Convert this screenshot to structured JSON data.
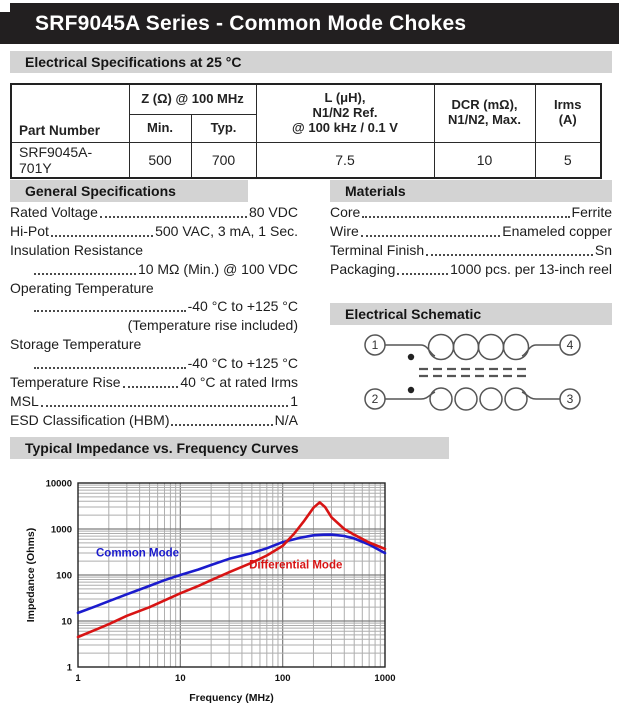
{
  "page": {
    "title": "SRF9045A Series - Common Mode Chokes"
  },
  "sections": {
    "electrical": "Electrical Specifications at 25 °C",
    "general": "General Specifications",
    "materials": "Materials",
    "schematic": "Electrical Schematic",
    "impedance": "Typical Impedance vs. Frequency Curves"
  },
  "table": {
    "col_part": "Part Number",
    "col_z": "Z (Ω) @ 100 MHz",
    "col_min": "Min.",
    "col_typ": "Typ.",
    "col_l": "L (μH),\nN1/N2 Ref.\n@ 100 kHz / 0.1 V",
    "col_dcr": "DCR (mΩ),\nN1/N2, Max.",
    "col_irms": "Irms\n(A)",
    "rows": [
      [
        "SRF9045A-701Y",
        "500",
        "700",
        "7.5",
        "10",
        "5"
      ]
    ]
  },
  "general_specs": [
    {
      "label": "Rated Voltage",
      "value": "80 VDC"
    },
    {
      "label": "Hi-Pot",
      "value": "500 VAC, 3 mA, 1 Sec."
    },
    {
      "label": "Insulation Resistance",
      "value": ""
    },
    {
      "label": "",
      "value": "10 MΩ (Min.) @ 100 VDC",
      "indent": true
    },
    {
      "label": "Operating Temperature",
      "value": ""
    },
    {
      "label": "",
      "value": "-40 °C to +125 °C",
      "indent": true
    },
    {
      "label": "",
      "value": "(Temperature rise included)",
      "noleader": true
    },
    {
      "label": "Storage Temperature",
      "value": ""
    },
    {
      "label": "",
      "value": "-40 °C to +125 °C",
      "indent": true
    },
    {
      "label": "Temperature Rise",
      "value": "40 °C at rated Irms"
    },
    {
      "label": "MSL",
      "value": "1"
    },
    {
      "label": "ESD Classification (HBM)",
      "value": "N/A"
    }
  ],
  "materials_specs": [
    {
      "label": "Core",
      "value": "Ferrite"
    },
    {
      "label": "Wire",
      "value": "Enameled copper"
    },
    {
      "label": "Terminal Finish",
      "value": "Sn"
    },
    {
      "label": "Packaging",
      "value": "1000 pcs. per 13-inch reel"
    }
  ],
  "schematic": {
    "t1": "1",
    "t2": "2",
    "t3": "3",
    "t4": "4"
  },
  "chart_data": {
    "type": "line",
    "title": "Typical Impedance vs. Frequency Curves",
    "xlabel": "Frequency (MHz)",
    "ylabel": "Impedance (Ohms)",
    "x_scale": "log",
    "y_scale": "log",
    "xlim": [
      1,
      1000
    ],
    "ylim": [
      1,
      10000
    ],
    "x_ticks": [
      1,
      10,
      100,
      1000
    ],
    "y_ticks": [
      1,
      10,
      100,
      1000,
      10000
    ],
    "grid": true,
    "colors": {
      "grid_minor": "#aeaeae",
      "grid_major": "#7d7d7d",
      "frame": "#222222"
    },
    "series": [
      {
        "name": "Common Mode",
        "color": "#1b1bcd",
        "label_at": [
          1.5,
          255
        ],
        "points": [
          [
            1,
            15
          ],
          [
            1.5,
            21
          ],
          [
            2,
            27
          ],
          [
            3,
            38
          ],
          [
            5,
            58
          ],
          [
            7,
            77
          ],
          [
            10,
            100
          ],
          [
            15,
            132
          ],
          [
            20,
            165
          ],
          [
            30,
            225
          ],
          [
            50,
            300
          ],
          [
            70,
            380
          ],
          [
            100,
            520
          ],
          [
            150,
            650
          ],
          [
            200,
            730
          ],
          [
            250,
            750
          ],
          [
            300,
            755
          ],
          [
            400,
            705
          ],
          [
            500,
            620
          ],
          [
            700,
            460
          ],
          [
            1000,
            300
          ]
        ]
      },
      {
        "name": "Differential Mode",
        "color": "#d81414",
        "label_at": [
          47,
          138
        ],
        "points": [
          [
            1,
            4.5
          ],
          [
            1.5,
            6.5
          ],
          [
            2,
            8.5
          ],
          [
            3,
            13
          ],
          [
            5,
            20
          ],
          [
            7,
            28
          ],
          [
            10,
            40
          ],
          [
            15,
            58
          ],
          [
            20,
            77
          ],
          [
            30,
            115
          ],
          [
            50,
            185
          ],
          [
            70,
            265
          ],
          [
            100,
            430
          ],
          [
            130,
            800
          ],
          [
            160,
            1450
          ],
          [
            200,
            2900
          ],
          [
            230,
            3800
          ],
          [
            260,
            3000
          ],
          [
            300,
            1800
          ],
          [
            400,
            1000
          ],
          [
            500,
            750
          ],
          [
            700,
            510
          ],
          [
            1000,
            370
          ]
        ]
      }
    ]
  }
}
